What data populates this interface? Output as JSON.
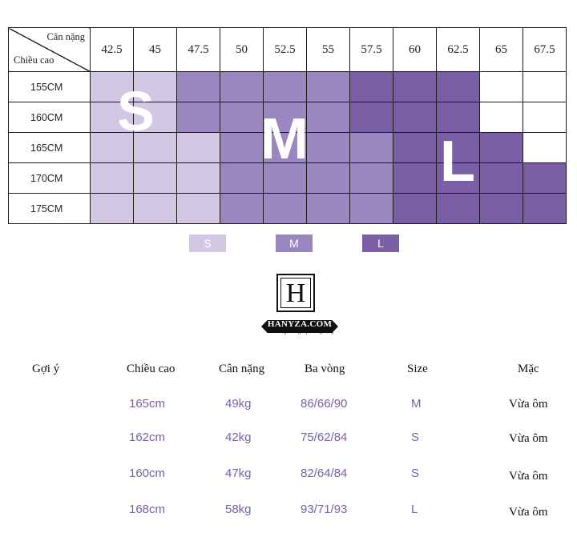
{
  "chart_data": {
    "type": "table",
    "corner_top": "Cân nặng",
    "corner_bottom": "Chiều cao",
    "weights": [
      "42.5",
      "45",
      "47.5",
      "50",
      "52.5",
      "55",
      "57.5",
      "60",
      "62.5",
      "65",
      "67.5"
    ],
    "heights": [
      "155CM",
      "160CM",
      "165CM",
      "170CM",
      "175CM"
    ],
    "grid": [
      [
        "S",
        "S",
        "M",
        "M",
        "M",
        "M",
        "L",
        "L",
        "L",
        "",
        ""
      ],
      [
        "S",
        "S",
        "M",
        "M",
        "M",
        "M",
        "L",
        "L",
        "L",
        "",
        ""
      ],
      [
        "S",
        "S",
        "S",
        "M",
        "M",
        "M",
        "M",
        "L",
        "L",
        "L",
        ""
      ],
      [
        "S",
        "S",
        "S",
        "M",
        "M",
        "M",
        "M",
        "L",
        "L",
        "L",
        "L"
      ],
      [
        "S",
        "S",
        "S",
        "M",
        "M",
        "M",
        "M",
        "L",
        "L",
        "L",
        "L"
      ]
    ],
    "big_labels": {
      "s": "S",
      "m": "M",
      "l": "L"
    },
    "colors": {
      "S": "#d3c8e4",
      "M": "#9b87c0",
      "L": "#7a5fa7",
      "": "#ffffff"
    }
  },
  "legend": {
    "s": "S",
    "m": "M",
    "l": "L"
  },
  "logo": {
    "letter": "H",
    "name": "HANYZA.COM",
    "tagline": "Thời trang - Đẳng cấp - Sang trọng"
  },
  "suggestions": {
    "headers": {
      "label": "Gợi ý",
      "height": "Chiều cao",
      "weight": "Cân nặng",
      "measurements": "Ba vòng",
      "size": "Size",
      "fit": "Mặc"
    },
    "rows": [
      {
        "height": "165cm",
        "weight": "49kg",
        "measurements": "86/66/90",
        "size": "M",
        "fit": "Vừa ôm"
      },
      {
        "height": "162cm",
        "weight": "42kg",
        "measurements": "75/62/84",
        "size": "S",
        "fit": "Vừa ôm"
      },
      {
        "height": "160cm",
        "weight": "47kg",
        "measurements": "82/64/84",
        "size": "S",
        "fit": "Vừa ôm"
      },
      {
        "height": "168cm",
        "weight": "58kg",
        "measurements": "93/71/93",
        "size": "L",
        "fit": "Vừa ôm"
      }
    ]
  }
}
